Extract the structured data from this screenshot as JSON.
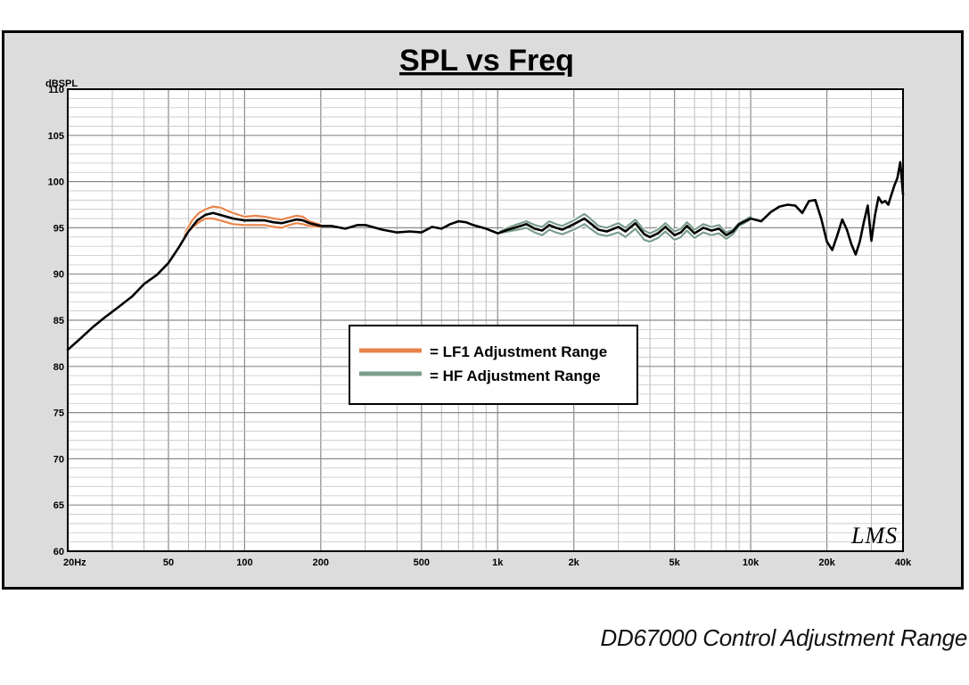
{
  "chart_data": {
    "type": "line",
    "title": "SPL vs Freq",
    "ylabel": "dBSPL",
    "xlabel": "",
    "x_scale": "log",
    "xlim": [
      20,
      40000
    ],
    "ylim": [
      60,
      110
    ],
    "grid": true,
    "legend_position": "center",
    "x_tick_labels": [
      {
        "value": 20,
        "label": "20Hz"
      },
      {
        "value": 50,
        "label": "50"
      },
      {
        "value": 100,
        "label": "100"
      },
      {
        "value": 200,
        "label": "200"
      },
      {
        "value": 500,
        "label": "500"
      },
      {
        "value": 1000,
        "label": "1k"
      },
      {
        "value": 2000,
        "label": "2k"
      },
      {
        "value": 5000,
        "label": "5k"
      },
      {
        "value": 10000,
        "label": "10k"
      },
      {
        "value": 20000,
        "label": "20k"
      },
      {
        "value": 40000,
        "label": "40k"
      }
    ],
    "y_ticks": [
      60,
      65,
      70,
      75,
      80,
      85,
      90,
      95,
      100,
      105,
      110
    ],
    "legend": [
      {
        "label": "= LF1 Adjustment Range",
        "color": "#e8844a"
      },
      {
        "label": "= HF Adjustment Range",
        "color": "#7b9e8c"
      }
    ],
    "watermark": "LMS",
    "series": [
      {
        "color": "#000000",
        "points": [
          [
            20,
            81.8
          ],
          [
            22,
            82.8
          ],
          [
            25,
            84.2
          ],
          [
            28,
            85.3
          ],
          [
            32,
            86.5
          ],
          [
            36,
            87.6
          ],
          [
            40,
            88.9
          ],
          [
            45,
            89.9
          ],
          [
            50,
            91.2
          ],
          [
            55,
            92.9
          ],
          [
            60,
            94.6
          ],
          [
            65,
            95.8
          ],
          [
            70,
            96.4
          ],
          [
            75,
            96.6
          ],
          [
            80,
            96.4
          ],
          [
            90,
            96.0
          ],
          [
            100,
            95.8
          ],
          [
            110,
            95.8
          ],
          [
            120,
            95.8
          ],
          [
            130,
            95.6
          ],
          [
            140,
            95.5
          ],
          [
            150,
            95.7
          ],
          [
            160,
            95.9
          ],
          [
            170,
            95.8
          ],
          [
            180,
            95.5
          ],
          [
            200,
            95.2
          ],
          [
            220,
            95.2
          ],
          [
            250,
            94.9
          ],
          [
            280,
            95.3
          ],
          [
            300,
            95.3
          ],
          [
            350,
            94.8
          ],
          [
            400,
            94.5
          ],
          [
            450,
            94.6
          ],
          [
            500,
            94.5
          ],
          [
            550,
            95.1
          ],
          [
            600,
            94.9
          ],
          [
            650,
            95.4
          ],
          [
            700,
            95.7
          ],
          [
            750,
            95.6
          ],
          [
            800,
            95.3
          ],
          [
            900,
            94.9
          ],
          [
            1000,
            94.4
          ],
          [
            1100,
            94.8
          ],
          [
            1200,
            95.1
          ],
          [
            1300,
            95.4
          ],
          [
            1400,
            94.9
          ],
          [
            1500,
            94.7
          ],
          [
            1600,
            95.3
          ],
          [
            1700,
            95.0
          ],
          [
            1800,
            94.8
          ],
          [
            2000,
            95.4
          ],
          [
            2200,
            96.0
          ],
          [
            2300,
            95.6
          ],
          [
            2500,
            94.8
          ],
          [
            2700,
            94.6
          ],
          [
            3000,
            95.1
          ],
          [
            3200,
            94.6
          ],
          [
            3500,
            95.5
          ],
          [
            3800,
            94.3
          ],
          [
            4000,
            94.0
          ],
          [
            4300,
            94.4
          ],
          [
            4600,
            95.1
          ],
          [
            5000,
            94.2
          ],
          [
            5300,
            94.5
          ],
          [
            5600,
            95.2
          ],
          [
            6000,
            94.4
          ],
          [
            6500,
            95.0
          ],
          [
            7000,
            94.7
          ],
          [
            7500,
            94.9
          ],
          [
            8000,
            94.2
          ],
          [
            8500,
            94.6
          ],
          [
            9000,
            95.4
          ],
          [
            10000,
            96.0
          ],
          [
            11000,
            95.7
          ],
          [
            12000,
            96.7
          ],
          [
            13000,
            97.3
          ],
          [
            14000,
            97.5
          ],
          [
            15000,
            97.4
          ],
          [
            16000,
            96.6
          ],
          [
            17000,
            97.9
          ],
          [
            18000,
            98.0
          ],
          [
            19000,
            96.0
          ],
          [
            20000,
            93.5
          ],
          [
            21000,
            92.6
          ],
          [
            22000,
            94.2
          ],
          [
            23000,
            95.9
          ],
          [
            24000,
            94.8
          ],
          [
            25000,
            93.2
          ],
          [
            26000,
            92.1
          ],
          [
            27000,
            93.5
          ],
          [
            28000,
            95.6
          ],
          [
            29000,
            97.4
          ],
          [
            30000,
            93.6
          ],
          [
            31000,
            96.4
          ],
          [
            32000,
            98.3
          ],
          [
            33000,
            97.7
          ],
          [
            34000,
            97.9
          ],
          [
            35000,
            97.5
          ],
          [
            36000,
            98.6
          ],
          [
            37000,
            99.6
          ],
          [
            38000,
            100.4
          ],
          [
            39000,
            102.1
          ],
          [
            40000,
            98.6
          ]
        ]
      },
      {
        "color": "#e8844a",
        "points": [
          [
            58,
            94.4
          ],
          [
            62,
            95.8
          ],
          [
            66,
            96.6
          ],
          [
            70,
            97.0
          ],
          [
            75,
            97.3
          ],
          [
            80,
            97.2
          ],
          [
            90,
            96.6
          ],
          [
            100,
            96.2
          ],
          [
            110,
            96.3
          ],
          [
            120,
            96.2
          ],
          [
            130,
            96.0
          ],
          [
            140,
            95.9
          ],
          [
            150,
            96.1
          ],
          [
            160,
            96.3
          ],
          [
            170,
            96.2
          ],
          [
            180,
            95.7
          ],
          [
            200,
            95.3
          ]
        ]
      },
      {
        "color": "#e8844a",
        "points": [
          [
            58,
            94.2
          ],
          [
            62,
            95.0
          ],
          [
            66,
            95.6
          ],
          [
            70,
            96.0
          ],
          [
            75,
            96.0
          ],
          [
            80,
            95.8
          ],
          [
            90,
            95.4
          ],
          [
            100,
            95.3
          ],
          [
            110,
            95.3
          ],
          [
            120,
            95.3
          ],
          [
            130,
            95.1
          ],
          [
            140,
            95.0
          ],
          [
            150,
            95.3
          ],
          [
            160,
            95.5
          ],
          [
            170,
            95.4
          ],
          [
            180,
            95.2
          ],
          [
            200,
            95.1
          ]
        ]
      },
      {
        "color": "#7b9e8c",
        "points": [
          [
            1000,
            94.5
          ],
          [
            1100,
            95.0
          ],
          [
            1200,
            95.4
          ],
          [
            1300,
            95.7
          ],
          [
            1400,
            95.3
          ],
          [
            1500,
            95.1
          ],
          [
            1600,
            95.7
          ],
          [
            1700,
            95.4
          ],
          [
            1800,
            95.2
          ],
          [
            2000,
            95.8
          ],
          [
            2200,
            96.5
          ],
          [
            2300,
            96.1
          ],
          [
            2500,
            95.2
          ],
          [
            2700,
            95.0
          ],
          [
            3000,
            95.5
          ],
          [
            3200,
            95.0
          ],
          [
            3500,
            95.9
          ],
          [
            3800,
            94.7
          ],
          [
            4000,
            94.4
          ],
          [
            4300,
            94.8
          ],
          [
            4600,
            95.5
          ],
          [
            5000,
            94.6
          ],
          [
            5300,
            94.9
          ],
          [
            5600,
            95.6
          ],
          [
            6000,
            94.8
          ],
          [
            6500,
            95.4
          ],
          [
            7000,
            95.1
          ],
          [
            7500,
            95.3
          ],
          [
            8000,
            94.5
          ],
          [
            8500,
            94.8
          ],
          [
            9000,
            95.5
          ],
          [
            10000,
            96.2
          ]
        ]
      },
      {
        "color": "#7b9e8c",
        "points": [
          [
            1000,
            94.4
          ],
          [
            1100,
            94.6
          ],
          [
            1200,
            94.8
          ],
          [
            1300,
            95.0
          ],
          [
            1400,
            94.5
          ],
          [
            1500,
            94.2
          ],
          [
            1600,
            94.8
          ],
          [
            1700,
            94.5
          ],
          [
            1800,
            94.3
          ],
          [
            2000,
            94.8
          ],
          [
            2200,
            95.4
          ],
          [
            2300,
            95.0
          ],
          [
            2500,
            94.3
          ],
          [
            2700,
            94.1
          ],
          [
            3000,
            94.5
          ],
          [
            3200,
            94.0
          ],
          [
            3500,
            94.9
          ],
          [
            3800,
            93.7
          ],
          [
            4000,
            93.5
          ],
          [
            4300,
            93.9
          ],
          [
            4600,
            94.6
          ],
          [
            5000,
            93.7
          ],
          [
            5300,
            94.0
          ],
          [
            5600,
            94.7
          ],
          [
            6000,
            93.9
          ],
          [
            6500,
            94.5
          ],
          [
            7000,
            94.2
          ],
          [
            7500,
            94.4
          ],
          [
            8000,
            93.8
          ],
          [
            8500,
            94.3
          ],
          [
            9000,
            95.2
          ],
          [
            10000,
            95.9
          ]
        ]
      }
    ]
  },
  "caption": "DD67000 Control Adjustment Range"
}
